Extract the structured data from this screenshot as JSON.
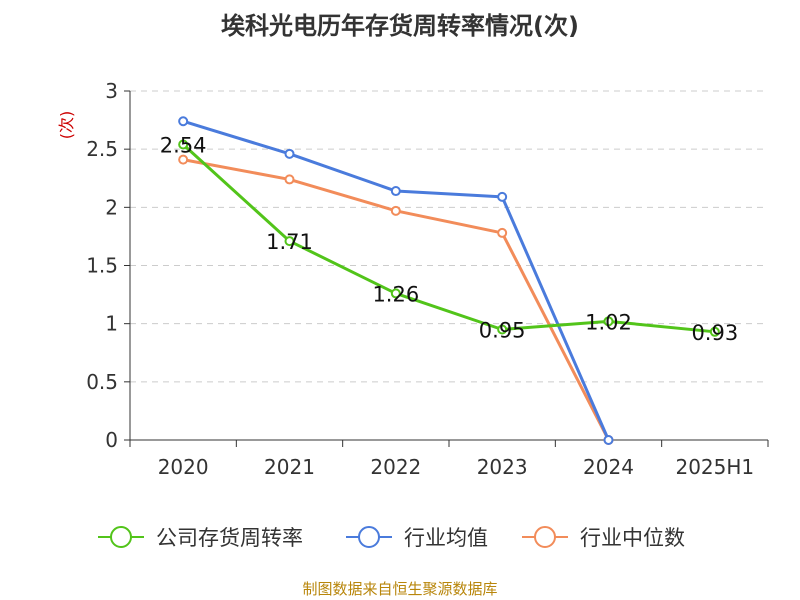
{
  "title": "埃科光电历年存货周转率情况(次)",
  "source": "制图数据来自恒生聚源数据库",
  "chart_data": {
    "type": "line",
    "title": "埃科光电历年存货周转率情况(次)",
    "ylabel": "(次)",
    "ylim": [
      0,
      3
    ],
    "yticks": [
      "0",
      "0.5",
      "1",
      "1.5",
      "2",
      "2.5",
      "3"
    ],
    "categories": [
      "2020",
      "2021",
      "2022",
      "2023",
      "2024",
      "2025H1"
    ],
    "grid": true,
    "legend_position": "bottom",
    "series": [
      {
        "name": "公司存货周转率",
        "color": "#52c41a",
        "labels": true,
        "values": [
          2.54,
          1.71,
          1.26,
          0.95,
          1.02,
          0.93
        ],
        "value_labels": [
          "2.54",
          "1.71",
          "1.26",
          "0.95",
          "1.02",
          "0.93"
        ]
      },
      {
        "name": "行业均值",
        "color": "#4a7bdc",
        "labels": false,
        "values": [
          2.74,
          2.46,
          2.14,
          2.09,
          0,
          null
        ]
      },
      {
        "name": "行业中位数",
        "color": "#f28c5a",
        "labels": false,
        "values": [
          2.41,
          2.24,
          1.97,
          1.78,
          0,
          null
        ]
      }
    ]
  }
}
